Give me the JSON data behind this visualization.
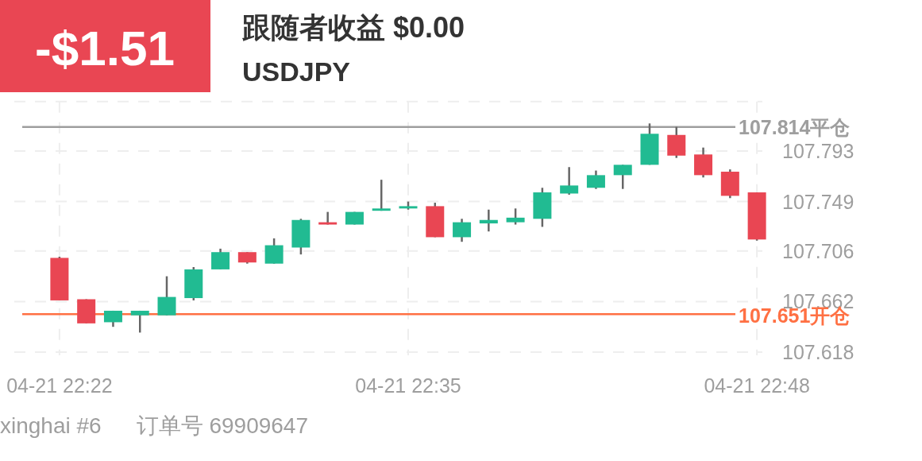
{
  "chart_data": {
    "type": "candlestick",
    "title": "跟随者收益 $0.00",
    "subtitle": "USDJPY",
    "annotations": [
      "-$1.51",
      "xinghai #6",
      "订单号 69909647"
    ],
    "categories": [
      "04-21 22:22",
      null,
      null,
      null,
      null,
      null,
      null,
      null,
      null,
      null,
      null,
      null,
      null,
      "04-21 22:35",
      null,
      null,
      null,
      null,
      null,
      null,
      null,
      null,
      null,
      null,
      null,
      null,
      "04-21 22:48"
    ],
    "ohlc": [
      [
        107.7,
        107.701,
        107.663,
        107.663
      ],
      [
        107.664,
        107.664,
        107.643,
        107.643
      ],
      [
        107.644,
        107.654,
        107.64,
        107.654
      ],
      [
        107.65,
        107.654,
        107.635,
        107.654
      ],
      [
        107.65,
        107.684,
        107.65,
        107.666
      ],
      [
        107.665,
        107.692,
        107.663,
        107.69
      ],
      [
        107.69,
        107.708,
        107.69,
        107.705
      ],
      [
        107.705,
        107.705,
        107.695,
        107.696
      ],
      [
        107.695,
        107.717,
        107.695,
        107.711
      ],
      [
        107.709,
        107.734,
        107.703,
        107.733
      ],
      [
        107.731,
        107.74,
        107.729,
        107.729
      ],
      [
        107.729,
        107.74,
        107.729,
        107.74
      ],
      [
        107.741,
        107.768,
        107.741,
        107.743
      ],
      [
        107.743,
        107.749,
        107.742,
        107.745
      ],
      [
        107.745,
        107.748,
        107.718,
        107.718
      ],
      [
        107.718,
        107.734,
        107.714,
        107.731
      ],
      [
        107.73,
        107.742,
        107.723,
        107.733
      ],
      [
        107.731,
        107.743,
        107.729,
        107.735
      ],
      [
        107.734,
        107.761,
        107.727,
        107.757
      ],
      [
        107.756,
        107.779,
        107.755,
        107.763
      ],
      [
        107.761,
        107.776,
        107.76,
        107.772
      ],
      [
        107.772,
        107.781,
        107.76,
        107.781
      ],
      [
        107.781,
        107.817,
        107.781,
        107.808
      ],
      [
        107.807,
        107.814,
        107.787,
        107.789
      ],
      [
        107.79,
        107.796,
        107.77,
        107.772
      ],
      [
        107.775,
        107.777,
        107.752,
        107.754
      ],
      [
        107.757,
        107.757,
        107.715,
        107.716
      ]
    ],
    "colors": [
      "#e94653",
      "#e94653",
      "#21bb92",
      "#21bb92",
      "#21bb92",
      "#21bb92",
      "#21bb92",
      "#e94653",
      "#21bb92",
      "#21bb92",
      "#e94653",
      "#21bb92",
      "#21bb92",
      "#21bb92",
      "#e94653",
      "#21bb92",
      "#21bb92",
      "#21bb92",
      "#21bb92",
      "#21bb92",
      "#21bb92",
      "#21bb92",
      "#21bb92",
      "#e94653",
      "#e94653",
      "#e94653",
      "#e94653"
    ],
    "ylim": [
      107.618,
      107.836
    ],
    "yticks": [
      107.618,
      107.662,
      107.706,
      107.749,
      107.793,
      {
        "value": 107.836,
        "label": null
      }
    ],
    "grid": true,
    "ref_lines": [
      {
        "axis": "y",
        "value": 107.814,
        "label": "107.814平仓",
        "color": "#9e9e9e"
      },
      {
        "axis": "y",
        "value": 107.651,
        "label": "107.651开仓",
        "color": "#ff7043"
      }
    ]
  }
}
